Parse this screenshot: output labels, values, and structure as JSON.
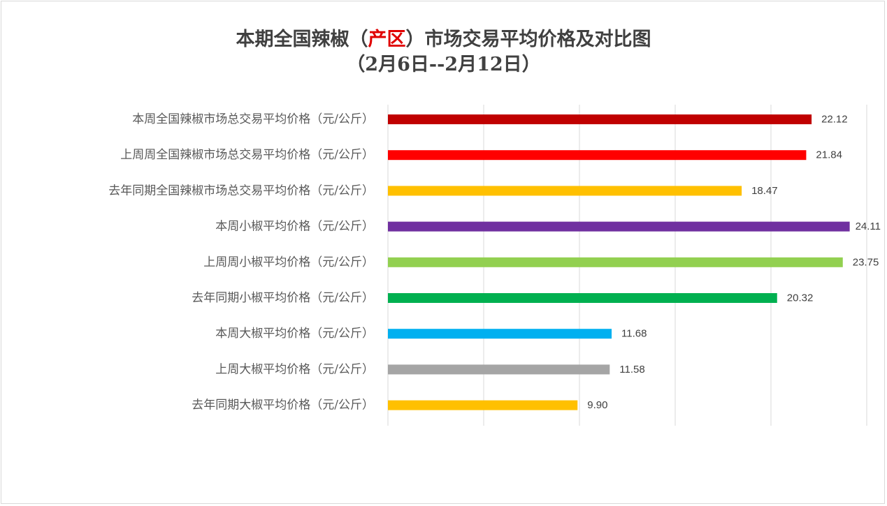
{
  "title": {
    "pre": "本期全国辣椒（",
    "highlight": "产区",
    "post": "）市场交易平均价格及对比图",
    "line2": "（2月6日--2月12日）",
    "highlight_color": "#e00000"
  },
  "chart_data": {
    "type": "bar",
    "orientation": "horizontal",
    "categories": [
      "本周全国辣椒市场总交易平均价格（元/公斤）",
      "上周周全国辣椒市场总交易平均价格（元/公斤）",
      "去年同期全国辣椒市场总交易平均价格（元/公斤）",
      "本周小椒平均价格（元/公斤）",
      "上周周小椒平均价格（元/公斤）",
      "去年同期小椒平均价格（元/公斤）",
      "本周大椒平均价格（元/公斤）",
      "上周大椒平均价格（元/公斤）",
      "去年同期大椒平均价格（元/公斤）"
    ],
    "values": [
      22.12,
      21.84,
      18.47,
      24.11,
      23.75,
      20.32,
      11.68,
      11.58,
      9.9
    ],
    "value_labels": [
      "22.12",
      "21.84",
      "18.47",
      "24.11",
      "23.75",
      "20.32",
      "11.68",
      "11.58",
      "9.90"
    ],
    "colors": [
      "#c00000",
      "#ff0000",
      "#ffc000",
      "#7030a0",
      "#92d050",
      "#00b050",
      "#00b0f0",
      "#a5a5a5",
      "#ffc000"
    ],
    "xlim": [
      0,
      25
    ],
    "grid": true,
    "legend": "none"
  }
}
